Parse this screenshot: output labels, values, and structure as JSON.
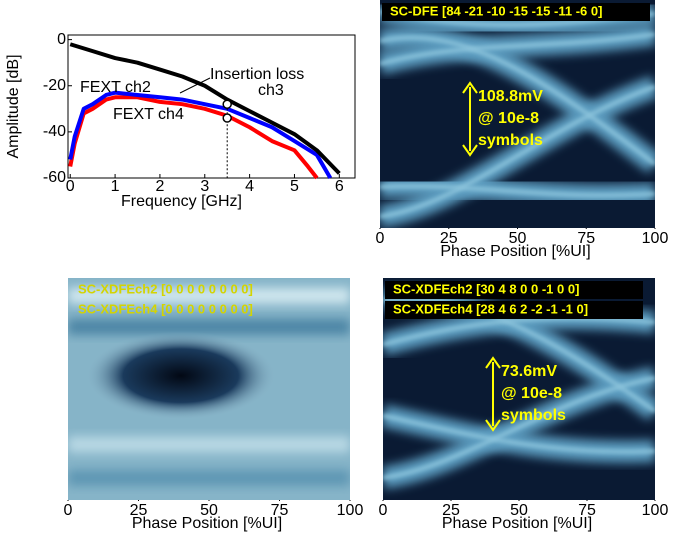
{
  "chart_data": [
    {
      "type": "line",
      "xlabel": "Frequency [GHz]",
      "ylabel": "Amplitude [dB]",
      "xlim": [
        -0.05,
        6.35
      ],
      "ylim": [
        -60,
        2
      ],
      "xticks": [
        0,
        1,
        2,
        3,
        4,
        5,
        6
      ],
      "yticks": [
        0,
        -20,
        -40,
        -60
      ],
      "annotations": [
        "Insertion loss",
        "ch3",
        "FEXT ch2",
        "FEXT ch4"
      ],
      "markers": {
        "x": [
          3.5,
          3.5
        ],
        "y": [
          -28,
          -34
        ]
      },
      "series": [
        {
          "name": "Insertion loss",
          "color": "#000000",
          "x": [
            0,
            0.5,
            1,
            1.5,
            2,
            2.5,
            3,
            3.5,
            4,
            4.5,
            5,
            5.5,
            6
          ],
          "values": [
            -2,
            -5,
            -8,
            -10,
            -13,
            -16,
            -20,
            -26,
            -31,
            -36,
            -41,
            -48,
            -58
          ]
        },
        {
          "name": "FEXT ch2",
          "color": "#ff0000",
          "x": [
            0,
            0.1,
            0.3,
            0.5,
            0.8,
            1,
            1.5,
            2,
            2.5,
            3,
            3.5,
            4,
            4.5,
            5,
            5.3,
            5.5
          ],
          "values": [
            -55,
            -45,
            -32,
            -30,
            -26,
            -25,
            -25,
            -27,
            -28,
            -30,
            -33,
            -38,
            -44,
            -48,
            -55,
            -60
          ]
        },
        {
          "name": "FEXT ch4",
          "color": "#0000ff",
          "x": [
            0,
            0.1,
            0.3,
            0.5,
            0.8,
            1,
            1.5,
            2,
            2.5,
            3,
            3.5,
            4,
            4.5,
            5,
            5.5,
            5.8
          ],
          "values": [
            -52,
            -42,
            -30,
            -28,
            -24,
            -23,
            -24,
            -25,
            -26,
            -28,
            -30,
            -34,
            -38,
            -44,
            -50,
            -60
          ]
        }
      ]
    },
    {
      "type": "eye",
      "titles": [
        "SC-DFE [84 -21 -10 -15 -15 -11 -6 0]"
      ],
      "xlabel": "Phase Position [%UI]",
      "xlim": [
        0,
        100
      ],
      "xticks": [
        0,
        25,
        50,
        75,
        100
      ],
      "annotation": [
        "108.8mV",
        "@ 10e-8",
        "symbols"
      ]
    },
    {
      "type": "eye",
      "titles": [
        "SC-XDFEch2 [0 0 0 0 0 0 0 0]",
        "SC-XDFEch4 [0 0 0 0 0 0 0 0]"
      ],
      "xlabel": "Phase Position [%UI]",
      "xlim": [
        0,
        100
      ],
      "xticks": [
        0,
        25,
        50,
        75,
        100
      ]
    },
    {
      "type": "eye",
      "titles": [
        "SC-XDFEch2 [30 4 8 0 0 -1 0 0]",
        "SC-XDFEch4 [28 4 6 2 -2 -1 -1 0]"
      ],
      "xlabel": "Phase Position [%UI]",
      "xlim": [
        0,
        100
      ],
      "xticks": [
        0,
        25,
        50,
        75,
        100
      ],
      "annotation": [
        "73.6mV",
        "@ 10e-8",
        "symbols"
      ]
    }
  ]
}
